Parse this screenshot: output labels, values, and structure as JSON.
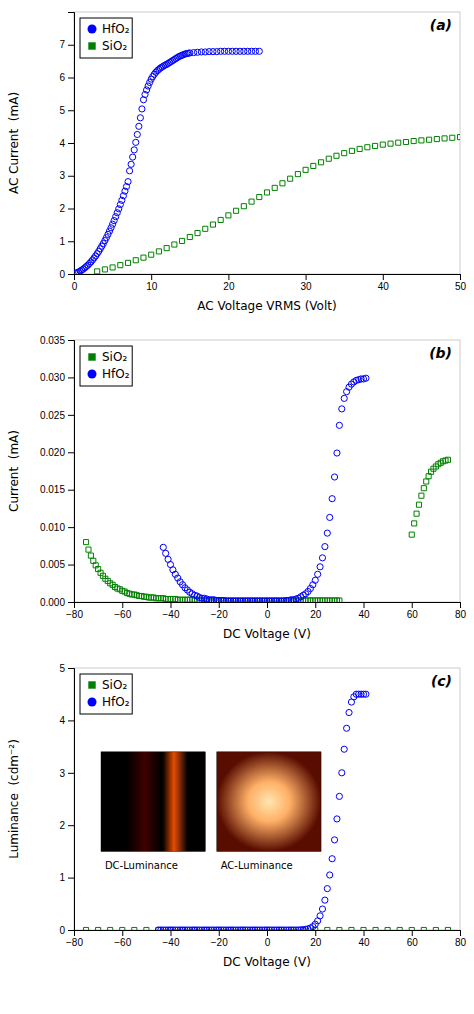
{
  "chart_data": [
    {
      "type": "scatter",
      "title": "(a)",
      "xlabel": "AC Voltage VRMS (Volt)",
      "ylabel": "AC Current  (mA)",
      "xlim": [
        0,
        50
      ],
      "ylim": [
        0,
        8
      ],
      "xticks": [
        0,
        10,
        20,
        30,
        40,
        50
      ],
      "yticks": [
        0,
        1,
        2,
        3,
        4,
        5,
        6,
        7
      ],
      "legend": "upper left",
      "series": [
        {
          "name": "HfO₂",
          "color": "#0000FF",
          "marker": "circle",
          "x": [
            0.2,
            0.4,
            0.6,
            0.8,
            1.0,
            1.2,
            1.4,
            1.6,
            1.8,
            2.0,
            2.2,
            2.4,
            2.6,
            2.8,
            3.0,
            3.2,
            3.4,
            3.6,
            3.8,
            4.0,
            4.2,
            4.4,
            4.6,
            4.8,
            5.0,
            5.2,
            5.4,
            5.6,
            5.8,
            6.0,
            6.2,
            6.4,
            6.6,
            6.8,
            7.0,
            7.2,
            7.4,
            7.6,
            7.8,
            8.0,
            8.2,
            8.4,
            8.6,
            8.8,
            9.0,
            9.2,
            9.4,
            9.6,
            9.8,
            10.0,
            10.2,
            10.4,
            10.6,
            10.8,
            11.0,
            11.2,
            11.4,
            11.6,
            11.8,
            12.0,
            12.2,
            12.4,
            12.6,
            12.8,
            13.0,
            13.2,
            13.4,
            13.6,
            13.8,
            14.0,
            14.2,
            14.4,
            14.6,
            14.8,
            15.0,
            15.5,
            16.0,
            16.5,
            17.0,
            17.5,
            18.0,
            18.5,
            19.0,
            19.5,
            20.0,
            20.5,
            21.0,
            21.5,
            22.0,
            22.5,
            23.0,
            23.5,
            24.0
          ],
          "values": [
            0.02,
            0.04,
            0.06,
            0.09,
            0.12,
            0.15,
            0.19,
            0.23,
            0.27,
            0.32,
            0.37,
            0.43,
            0.49,
            0.55,
            0.62,
            0.69,
            0.77,
            0.85,
            0.93,
            1.02,
            1.11,
            1.21,
            1.31,
            1.41,
            1.52,
            1.63,
            1.75,
            1.87,
            1.99,
            2.12,
            2.25,
            2.39,
            2.53,
            2.67,
            2.82,
            3.15,
            3.35,
            3.57,
            3.79,
            4.02,
            4.26,
            4.51,
            4.77,
            5.04,
            5.32,
            5.48,
            5.62,
            5.74,
            5.85,
            5.95,
            6.03,
            6.1,
            6.16,
            6.21,
            6.25,
            6.29,
            6.32,
            6.35,
            6.38,
            6.4,
            6.43,
            6.46,
            6.49,
            6.52,
            6.55,
            6.58,
            6.61,
            6.64,
            6.66,
            6.68,
            6.7,
            6.72,
            6.73,
            6.74,
            6.75,
            6.76,
            6.77,
            6.78,
            6.78,
            6.79,
            6.79,
            6.79,
            6.8,
            6.8,
            6.8,
            6.8,
            6.8,
            6.8,
            6.8,
            6.8,
            6.8,
            6.8,
            6.8
          ]
        },
        {
          "name": "SiO₂",
          "color": "#008000",
          "marker": "square",
          "x": [
            3,
            4,
            5,
            6,
            7,
            8,
            9,
            10,
            11,
            12,
            13,
            14,
            15,
            16,
            17,
            18,
            19,
            20,
            21,
            22,
            23,
            24,
            25,
            26,
            27,
            28,
            29,
            30,
            31,
            32,
            33,
            34,
            35,
            36,
            37,
            38,
            39,
            40,
            41,
            42,
            43,
            44,
            45,
            46,
            47,
            48,
            49,
            50
          ],
          "values": [
            0.08,
            0.14,
            0.2,
            0.27,
            0.34,
            0.42,
            0.5,
            0.59,
            0.69,
            0.79,
            0.9,
            1.01,
            1.13,
            1.25,
            1.38,
            1.51,
            1.65,
            1.79,
            1.93,
            2.07,
            2.21,
            2.35,
            2.49,
            2.63,
            2.77,
            2.91,
            3.05,
            3.18,
            3.3,
            3.41,
            3.52,
            3.61,
            3.69,
            3.76,
            3.82,
            3.87,
            3.91,
            3.95,
            3.98,
            4.01,
            4.03,
            4.06,
            4.08,
            4.1,
            4.12,
            4.14,
            4.16,
            4.18
          ]
        }
      ]
    },
    {
      "type": "scatter",
      "title": "(b)",
      "xlabel": "DC Voltage (V)",
      "ylabel": "Current  (mA)",
      "xlim": [
        -80,
        80
      ],
      "ylim": [
        0,
        0.035
      ],
      "xticks": [
        {
          "value": -80,
          "label": "−80"
        },
        {
          "value": -60,
          "label": "−60"
        },
        {
          "value": -40,
          "label": "−40"
        },
        {
          "value": -20,
          "label": "−20"
        },
        0,
        20,
        40,
        60,
        80
      ],
      "yticks": [
        {
          "value": 0,
          "label": "0.000"
        },
        0.005,
        {
          "value": 0.01,
          "label": "0.010"
        },
        0.015,
        {
          "value": 0.02,
          "label": "0.020"
        },
        0.025,
        {
          "value": 0.03,
          "label": "0.030"
        },
        0.035
      ],
      "legend": "upper left",
      "series": [
        {
          "name": "SiO₂",
          "color": "#008000",
          "marker": "square",
          "x": [
            -75,
            -74,
            -73,
            -72,
            -71,
            -70,
            -69,
            -68,
            -67,
            -66,
            -65,
            -64,
            -63,
            -62,
            -61,
            -60,
            -59,
            -58,
            -57,
            -56,
            -55,
            -54,
            -53,
            -52,
            -51,
            -50,
            -49,
            -48,
            -47,
            -46,
            -45,
            -44,
            -43,
            -42,
            -41,
            -40,
            -39,
            -38,
            -37,
            -36,
            -35,
            -34,
            -33,
            -32,
            -31,
            -30,
            -29,
            -28,
            -27,
            -26,
            -25,
            -24,
            -23,
            -22,
            -21,
            -20,
            -19,
            -18,
            -17,
            -16,
            -15,
            -14,
            -13,
            -12,
            -11,
            -10,
            -9,
            -8,
            -7,
            -6,
            -5,
            -4,
            -3,
            -2,
            -1,
            0,
            1,
            2,
            3,
            4,
            5,
            6,
            7,
            8,
            9,
            10,
            11,
            12,
            13,
            14,
            15,
            16,
            17,
            18,
            19,
            20,
            21,
            22,
            23,
            24,
            25,
            26,
            27,
            28,
            29,
            30,
            60,
            61,
            62,
            63,
            64,
            65,
            66,
            67,
            68,
            69,
            70,
            71,
            72,
            73,
            74,
            75
          ],
          "values": [
            0.008,
            0.007,
            0.0062,
            0.0055,
            0.0049,
            0.0044,
            0.0039,
            0.0035,
            0.0031,
            0.0028,
            0.0025,
            0.0023,
            0.002,
            0.0018,
            0.0017,
            0.0015,
            0.0014,
            0.0012,
            0.0011,
            0.001,
            0.001,
            0.0009,
            0.0008,
            0.0008,
            0.0007,
            0.0007,
            0.0006,
            0.0006,
            0.0006,
            0.0005,
            0.0005,
            0.0005,
            0.0005,
            0.0004,
            0.0004,
            0.0004,
            0.0004,
            0.0004,
            0.0003,
            0.0003,
            0.0003,
            0.0003,
            0.0003,
            0.0003,
            0.0003,
            0.0003,
            0.0003,
            0.0002,
            0.0002,
            0.0002,
            0.0002,
            0.0002,
            0.0002,
            0.0002,
            0.0002,
            0.0002,
            0.0002,
            0.0002,
            0.0002,
            0.0002,
            0.0002,
            0.0002,
            0.0002,
            0.0002,
            0.0002,
            0.0002,
            0.0002,
            0.0002,
            0.0002,
            0.0002,
            0.0002,
            0.0002,
            0.0002,
            0.0002,
            0.0002,
            0.0002,
            0.0002,
            0.0002,
            0.0002,
            0.0002,
            0.0002,
            0.0002,
            0.0002,
            0.0002,
            0.0002,
            0.0002,
            0.0002,
            0.0002,
            0.0002,
            0.0002,
            0.0002,
            0.0002,
            0.0002,
            0.0002,
            0.0002,
            0.0002,
            0.0002,
            0.0002,
            0.0002,
            0.0002,
            0.0002,
            0.0002,
            0.0002,
            0.0002,
            0.0002,
            0.0002,
            0.009,
            0.0105,
            0.0118,
            0.013,
            0.0142,
            0.0152,
            0.0161,
            0.0168,
            0.0174,
            0.0178,
            0.0181,
            0.0184,
            0.0186,
            0.0188,
            0.0189,
            0.019
          ]
        },
        {
          "name": "HfO₂",
          "color": "#0000FF",
          "marker": "circle",
          "x": [
            -43,
            -42,
            -41,
            -40,
            -39,
            -38,
            -37,
            -36,
            -35,
            -34,
            -33,
            -32,
            -31,
            -30,
            -29,
            -28,
            -27,
            -26,
            -25,
            -24,
            -23,
            -22,
            -21,
            -20,
            -19,
            -18,
            -17,
            -16,
            -15,
            -14,
            -13,
            -12,
            -11,
            -10,
            -9,
            -8,
            -7,
            -6,
            -5,
            -4,
            -3,
            -2,
            -1,
            0,
            1,
            2,
            3,
            4,
            5,
            6,
            7,
            8,
            9,
            10,
            11,
            12,
            13,
            14,
            15,
            16,
            17,
            18,
            19,
            20,
            21,
            22,
            23,
            24,
            25,
            26,
            27,
            28,
            29,
            30,
            31,
            32,
            33,
            34,
            35,
            36,
            37,
            38,
            39,
            40,
            41
          ],
          "values": [
            0.0073,
            0.0065,
            0.0057,
            0.005,
            0.0043,
            0.0037,
            0.0032,
            0.0027,
            0.0023,
            0.0019,
            0.0016,
            0.0013,
            0.0011,
            0.0009,
            0.0008,
            0.0006,
            0.0005,
            0.0005,
            0.0004,
            0.0003,
            0.0003,
            0.0003,
            0.0002,
            0.0002,
            0.0002,
            0.0002,
            0.0001,
            0.0001,
            0.0001,
            0.0001,
            0.0001,
            0.0001,
            0.0001,
            0.0001,
            0.0001,
            0.0001,
            0.0001,
            0.0001,
            0.0001,
            0.0001,
            0.0001,
            0.0001,
            0.0001,
            0.0001,
            0.0001,
            0.0001,
            0.0001,
            0.0001,
            0.0001,
            0.0001,
            0.0001,
            0.0002,
            0.0002,
            0.0003,
            0.0003,
            0.0004,
            0.0005,
            0.0007,
            0.0009,
            0.0011,
            0.0014,
            0.0018,
            0.0023,
            0.0029,
            0.0037,
            0.0047,
            0.0059,
            0.0074,
            0.0092,
            0.0113,
            0.0138,
            0.0167,
            0.0199,
            0.0236,
            0.0258,
            0.0272,
            0.0281,
            0.0287,
            0.0291,
            0.0294,
            0.0296,
            0.0297,
            0.0298,
            0.0298,
            0.0299
          ]
        }
      ]
    },
    {
      "type": "scatter",
      "title": "(c)",
      "xlabel": "DC Voltage (V)",
      "ylabel": "Luminance  (cdm⁻²)",
      "xlim": [
        -80,
        80
      ],
      "ylim": [
        0,
        5
      ],
      "xticks": [
        {
          "value": -80,
          "label": "−80"
        },
        {
          "value": -60,
          "label": "−60"
        },
        {
          "value": -40,
          "label": "−40"
        },
        {
          "value": -20,
          "label": "−20"
        },
        0,
        20,
        40,
        60,
        80
      ],
      "yticks": [
        0,
        1,
        2,
        3,
        4,
        5
      ],
      "legend": "upper left",
      "annotations": [
        "DC-Luminance",
        "AC-Luminance"
      ],
      "series": [
        {
          "name": "SiO₂",
          "color": "#008000",
          "marker": "square",
          "x": [
            -75,
            -70,
            -65,
            -60,
            -55,
            -50,
            -45,
            -40,
            -35,
            -30,
            -25,
            -20,
            -15,
            -10,
            -5,
            0,
            5,
            10,
            15,
            20,
            25,
            30,
            35,
            40,
            45,
            50,
            55,
            60,
            65,
            70,
            75
          ],
          "values": [
            0.0,
            0.0,
            0.0,
            0.0,
            0.0,
            0.0,
            0.0,
            0.0,
            0.0,
            0.0,
            0.0,
            0.0,
            0.0,
            0.0,
            0.0,
            0.0,
            0.0,
            0.0,
            0.0,
            0.0,
            0.0,
            0.0,
            0.0,
            0.0,
            0.0,
            0.0,
            0.0,
            0.0,
            0.0,
            0.0,
            0.0
          ]
        },
        {
          "name": "HfO₂",
          "color": "#0000FF",
          "marker": "circle",
          "x": [
            -45,
            -44,
            -43,
            -42,
            -41,
            -40,
            -39,
            -38,
            -37,
            -36,
            -35,
            -34,
            -33,
            -32,
            -31,
            -30,
            -29,
            -28,
            -27,
            -26,
            -25,
            -24,
            -23,
            -22,
            -21,
            -20,
            -19,
            -18,
            -17,
            -16,
            -15,
            -14,
            -13,
            -12,
            -11,
            -10,
            -9,
            -8,
            -7,
            -6,
            -5,
            -4,
            -3,
            -2,
            -1,
            0,
            1,
            2,
            3,
            4,
            5,
            6,
            7,
            8,
            9,
            10,
            11,
            12,
            13,
            14,
            15,
            16,
            17,
            18,
            19,
            20,
            21,
            22,
            23,
            24,
            25,
            26,
            27,
            28,
            29,
            30,
            31,
            32,
            33,
            34,
            35,
            36,
            37,
            38,
            39,
            40,
            41
          ],
          "values": [
            0.0,
            0.0,
            0.0,
            0.0,
            0.0,
            0.0,
            0.0,
            0.0,
            0.0,
            0.0,
            0.0,
            0.0,
            0.0,
            0.0,
            0.0,
            0.0,
            0.0,
            0.0,
            0.0,
            0.0,
            0.0,
            0.0,
            0.0,
            0.0,
            0.0,
            0.0,
            0.0,
            0.0,
            0.0,
            0.0,
            0.0,
            0.0,
            0.0,
            0.0,
            0.0,
            0.0,
            0.0,
            0.0,
            0.0,
            0.0,
            0.0,
            0.0,
            0.0,
            0.0,
            0.0,
            0.0,
            0.0,
            0.0,
            0.0,
            0.0,
            0.0,
            0.0,
            0.0,
            0.0,
            0.0,
            0.0,
            0.0,
            0.0,
            0.001,
            0.003,
            0.006,
            0.012,
            0.022,
            0.038,
            0.065,
            0.11,
            0.175,
            0.27,
            0.4,
            0.57,
            0.79,
            1.05,
            1.36,
            1.72,
            2.12,
            2.55,
            3.0,
            3.45,
            3.85,
            4.15,
            4.35,
            4.45,
            4.5,
            4.5,
            4.5,
            4.5,
            4.5
          ]
        }
      ]
    }
  ]
}
